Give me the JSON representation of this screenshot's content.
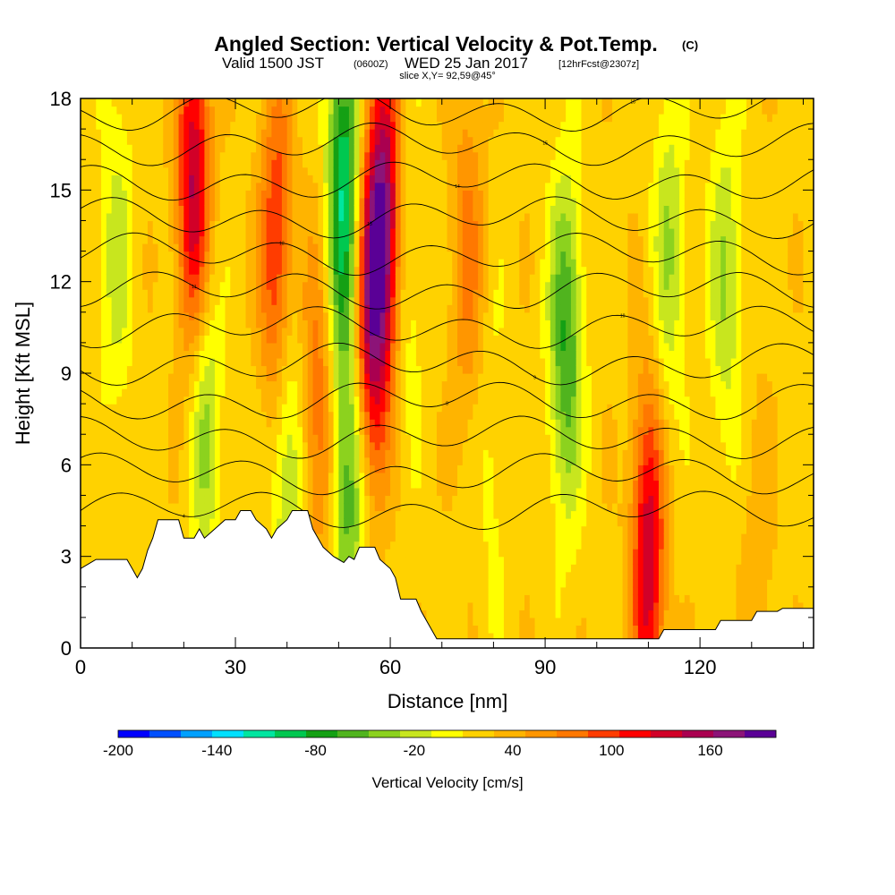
{
  "chart_data": {
    "type": "heatmap",
    "title": "Angled Section: Vertical Velocity & Pot.Temp.",
    "title_unit": "(C)",
    "subtitle": {
      "part1": "Valid 1500 JST",
      "part2": "(0600Z)",
      "part3": "WED 25 Jan 2017",
      "part4": "[12hrFcst@2307z]"
    },
    "slice_label": "slice X,Y= 92,59@45°",
    "xlabel": "Distance [nm]",
    "ylabel": "Height [Kft MSL]",
    "xlim": [
      0,
      142
    ],
    "ylim": [
      0,
      18
    ],
    "x_ticks": [
      0,
      30,
      60,
      90,
      120
    ],
    "y_ticks": [
      0,
      3,
      6,
      9,
      12,
      15,
      18
    ],
    "colorbar": {
      "label": "Vertical Velocity [cm/s]",
      "min": -200,
      "max": 200,
      "ticks": [
        -200,
        -140,
        -80,
        -20,
        40,
        100,
        160
      ],
      "colors": [
        "#0000ff",
        "#0050ff",
        "#00a0ff",
        "#00e0ff",
        "#00e6a0",
        "#00c850",
        "#14a014",
        "#50b41e",
        "#8cd21e",
        "#c8e61e",
        "#ffff00",
        "#ffd200",
        "#ffb400",
        "#ff9600",
        "#ff7800",
        "#ff3c00",
        "#ff0000",
        "#d20028",
        "#aa0050",
        "#8c1478",
        "#5a0096"
      ]
    },
    "velocity_features": [
      {
        "x": 7,
        "z": 13,
        "w": -40
      },
      {
        "x": 22,
        "z": 15,
        "w": 130
      },
      {
        "x": 24,
        "z": 8,
        "w": -60
      },
      {
        "x": 38,
        "z": 13,
        "w": 90
      },
      {
        "x": 40,
        "z": 6,
        "w": -60
      },
      {
        "x": 46,
        "z": 8,
        "w": 60
      },
      {
        "x": 51,
        "z": 15,
        "w": -130
      },
      {
        "x": 52,
        "z": 5,
        "w": -80
      },
      {
        "x": 59,
        "z": 14,
        "w": 140
      },
      {
        "x": 56,
        "z": 11,
        "w": 120
      },
      {
        "x": 63,
        "z": 12,
        "w": -30
      },
      {
        "x": 75,
        "z": 13,
        "w": 50
      },
      {
        "x": 80,
        "z": 6,
        "w": -20
      },
      {
        "x": 94,
        "z": 10,
        "w": -90
      },
      {
        "x": 110,
        "z": 3,
        "w": 120
      },
      {
        "x": 114,
        "z": 13,
        "w": -50
      },
      {
        "x": 125,
        "z": 12,
        "w": -50
      },
      {
        "x": 131,
        "z": 3,
        "w": 20
      }
    ],
    "theta_contours": [
      {
        "base_z": 4.5,
        "label": "4"
      },
      {
        "base_z": 5.7,
        "label": ""
      },
      {
        "base_z": 6.9,
        "label": "7"
      },
      {
        "base_z": 8.1,
        "label": "8"
      },
      {
        "base_z": 9.3,
        "label": "9"
      },
      {
        "base_z": 10.5,
        "label": "10"
      },
      {
        "base_z": 11.7,
        "label": "11"
      },
      {
        "base_z": 12.9,
        "label": "12"
      },
      {
        "base_z": 14.1,
        "label": "13"
      },
      {
        "base_z": 15.3,
        "label": "14"
      },
      {
        "base_z": 16.5,
        "label": "15"
      },
      {
        "base_z": 17.6,
        "label": "16"
      }
    ],
    "terrain": [
      [
        0,
        2.6
      ],
      [
        3,
        2.9
      ],
      [
        9,
        2.9
      ],
      [
        10,
        2.6
      ],
      [
        11,
        2.3
      ],
      [
        12,
        2.6
      ],
      [
        13,
        3.2
      ],
      [
        14,
        3.6
      ],
      [
        15,
        4.2
      ],
      [
        19,
        4.2
      ],
      [
        20,
        3.6
      ],
      [
        22,
        3.6
      ],
      [
        23,
        3.9
      ],
      [
        24,
        3.6
      ],
      [
        26,
        3.9
      ],
      [
        28,
        4.2
      ],
      [
        30,
        4.2
      ],
      [
        31,
        4.5
      ],
      [
        33,
        4.5
      ],
      [
        34,
        4.2
      ],
      [
        36,
        3.9
      ],
      [
        37,
        3.6
      ],
      [
        38,
        3.9
      ],
      [
        40,
        4.2
      ],
      [
        41,
        4.5
      ],
      [
        44,
        4.5
      ],
      [
        45,
        3.9
      ],
      [
        46,
        3.6
      ],
      [
        47,
        3.3
      ],
      [
        49,
        3.0
      ],
      [
        51,
        2.8
      ],
      [
        52,
        3.0
      ],
      [
        53,
        2.9
      ],
      [
        54,
        3.3
      ],
      [
        57,
        3.3
      ],
      [
        58,
        2.9
      ],
      [
        60,
        2.6
      ],
      [
        61,
        2.3
      ],
      [
        62,
        1.6
      ],
      [
        65,
        1.6
      ],
      [
        66,
        1.2
      ],
      [
        68,
        0.6
      ],
      [
        69,
        0.3
      ],
      [
        104,
        0.3
      ],
      [
        107,
        0.3
      ],
      [
        108,
        0.3
      ],
      [
        112,
        0.3
      ],
      [
        113,
        0.6
      ],
      [
        115,
        0.6
      ],
      [
        123,
        0.6
      ],
      [
        124,
        0.9
      ],
      [
        130,
        0.9
      ],
      [
        131,
        1.2
      ],
      [
        135,
        1.2
      ],
      [
        136,
        1.3
      ],
      [
        142,
        1.3
      ]
    ]
  }
}
